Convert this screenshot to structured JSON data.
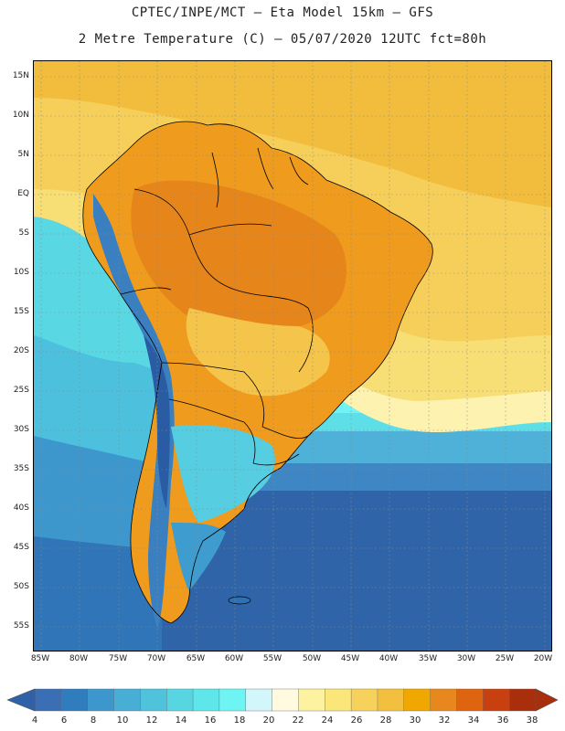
{
  "header": {
    "line1": "CPTEC/INPE/MCT –  Eta Model 15km – GFS",
    "line2": "2 Metre Temperature (C) – 05/07/2020 12UTC fct=80h"
  },
  "map": {
    "variable": "2 Metre Temperature",
    "units": "C",
    "lon_range": [
      -86,
      -19
    ],
    "lat_range": [
      -59,
      17
    ],
    "lat_labels": [
      "15N",
      "10N",
      "5N",
      "EQ",
      "5S",
      "10S",
      "15S",
      "20S",
      "25S",
      "30S",
      "35S",
      "40S",
      "45S",
      "50S",
      "55S"
    ],
    "lat_values": [
      15,
      10,
      5,
      0,
      -5,
      -10,
      -15,
      -20,
      -25,
      -30,
      -35,
      -40,
      -45,
      -50,
      -55
    ],
    "lon_labels": [
      "85W",
      "80W",
      "75W",
      "70W",
      "65W",
      "60W",
      "55W",
      "50W",
      "45W",
      "40W",
      "35W",
      "30W",
      "25W",
      "20W"
    ],
    "lon_values": [
      -85,
      -80,
      -75,
      -70,
      -65,
      -60,
      -55,
      -50,
      -45,
      -40,
      -35,
      -30,
      -25,
      -20
    ]
  },
  "legend": {
    "values": [
      "4",
      "6",
      "8",
      "10",
      "12",
      "14",
      "16",
      "18",
      "20",
      "22",
      "24",
      "26",
      "28",
      "30",
      "32",
      "34",
      "36",
      "38"
    ],
    "colors": [
      "#3a6fb5",
      "#2f7dbd",
      "#3e97cc",
      "#48aed6",
      "#4fc3dc",
      "#57d6e2",
      "#5ee6ea",
      "#6ff4f4",
      "#d2f6fa",
      "#fffae0",
      "#fdf2a0",
      "#fbe67a",
      "#f6d25a",
      "#f2c03e",
      "#f0a800",
      "#e8871e",
      "#de6410",
      "#c84010",
      "#a92f0c"
    ],
    "low_arrow_color": "#3060a8",
    "high_arrow_color": "#a92f0c"
  }
}
